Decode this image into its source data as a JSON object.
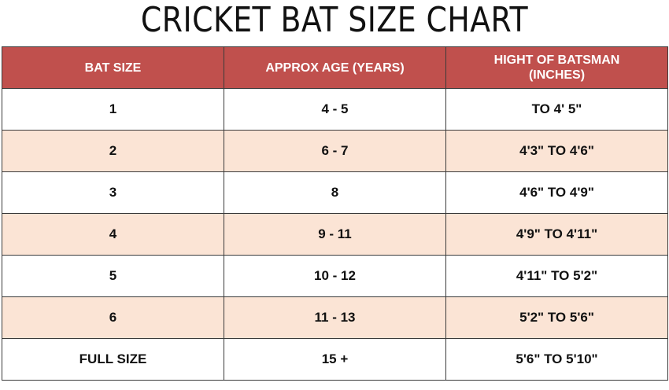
{
  "title": "CRICKET BAT SIZE CHART",
  "colors": {
    "header_bg": "#c0504d",
    "header_text": "#ffffff",
    "alt_row_bg": "#fbe4d5",
    "row_bg": "#ffffff",
    "border": "#3a3a3a"
  },
  "table": {
    "headers": [
      "BAT SIZE",
      "APPROX AGE (YEARS)",
      "HIGHT OF BATSMAN (INCHES)"
    ],
    "header_lines": {
      "col3_line1": "HIGHT OF BATSMAN",
      "col3_line2": "(INCHES)"
    },
    "rows": [
      {
        "bat_size": "1",
        "age": "4 - 5",
        "height": "TO 4' 5\""
      },
      {
        "bat_size": "2",
        "age": "6 - 7",
        "height": "4'3\" TO 4'6\""
      },
      {
        "bat_size": "3",
        "age": "8",
        "height": "4'6\" TO 4'9\""
      },
      {
        "bat_size": "4",
        "age": "9 - 11",
        "height": "4'9\" TO 4'11\""
      },
      {
        "bat_size": "5",
        "age": "10 - 12",
        "height": "4'11\" TO 5'2\""
      },
      {
        "bat_size": "6",
        "age": "11 - 13",
        "height": "5'2\" TO 5'6\""
      },
      {
        "bat_size": "FULL SIZE",
        "age": "15 +",
        "height": "5'6\" TO 5'10\""
      }
    ]
  }
}
